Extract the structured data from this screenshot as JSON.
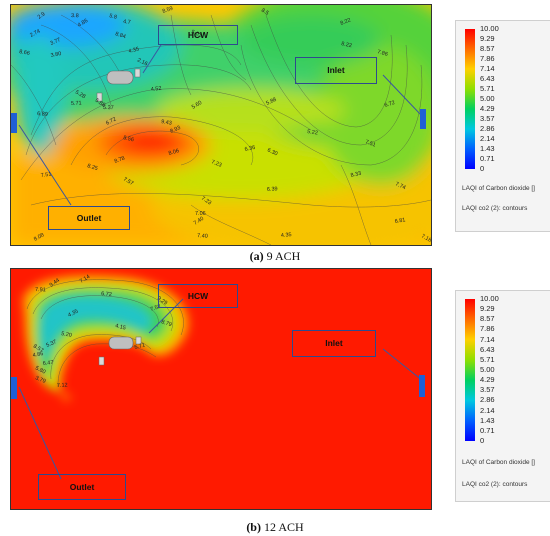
{
  "panels": [
    {
      "id": "a",
      "caption_letter": "(a)",
      "caption_rest": " 9 ACH",
      "labels": {
        "hcw": "HCW",
        "inlet": "Inlet",
        "outlet": "Outlet"
      },
      "contour_values": [
        "2.9",
        "3.8",
        "4.86",
        "4.7",
        "2.74",
        "8.66",
        "3.77",
        "5.8",
        "8.59",
        "8.84",
        "4.35",
        "5.01",
        "3.80",
        "2.16",
        "4.52",
        "5.28",
        "5.71",
        "5.88",
        "5.37",
        "5.60",
        "6.89",
        "6.72",
        "9.43",
        "8.93",
        "8.56",
        "8.78",
        "8.25",
        "8.06",
        "7.23",
        "6.36",
        "6.30",
        "7.51",
        "7.57",
        "6.39",
        "7.23",
        "7.06",
        "7.40",
        "7.40",
        "8.08",
        "5.22",
        "5.88",
        "8.22",
        "8.22",
        "7.86",
        "6.72",
        "7.51",
        "8.33",
        "7.74",
        "6.81",
        "7.18",
        "4.35",
        "8.5"
      ]
    },
    {
      "id": "b",
      "caption_letter": "(b)",
      "caption_rest": " 12 ACH",
      "labels": {
        "hcw": "HCW",
        "inlet": "Inlet",
        "outlet": "Outlet"
      },
      "contour_values": [
        "9.44",
        "7.91",
        "7.14",
        "6.72",
        "4.35",
        "5.20",
        "5.37",
        "4.15",
        "7.52",
        "8.79",
        "5.71",
        "3.79",
        "4.86",
        "5.80",
        "6.47",
        "8.57",
        "7.12",
        "9.29"
      ]
    }
  ],
  "legend": {
    "ticks": [
      "10.00",
      "9.29",
      "8.57",
      "7.86",
      "7.14",
      "6.43",
      "5.71",
      "5.00",
      "4.29",
      "3.57",
      "2.86",
      "2.14",
      "1.43",
      "0.71",
      "0"
    ],
    "label1": "LAQI of Carbon dioxide []",
    "label2": "LAQI co2 (2): contours",
    "colors": [
      "#ff0000",
      "#ff6a00",
      "#ffd000",
      "#8fdf00",
      "#00d060",
      "#00c8e0",
      "#0060ff",
      "#0000ff"
    ]
  }
}
